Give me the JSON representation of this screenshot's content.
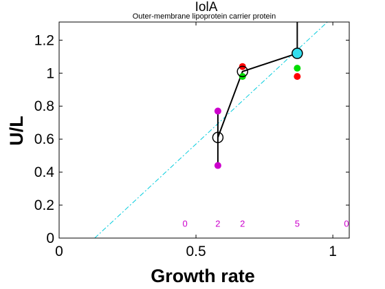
{
  "chart_data": {
    "type": "scatter",
    "title": "IolA",
    "subtitle": "Outer-membrane lipoprotein carrier protein",
    "xlabel": "Growth rate",
    "ylabel": "U/L",
    "xlim": [
      0,
      1.06
    ],
    "ylim": [
      0,
      1.31
    ],
    "x_ticks": [
      0,
      0.5,
      1
    ],
    "x_tick_labels": [
      "0",
      "0.5",
      "1"
    ],
    "y_ticks": [
      0,
      0.2,
      0.4,
      0.6,
      0.8,
      1,
      1.2
    ],
    "y_tick_labels": [
      "0",
      "0.2",
      "0.4",
      "0.6",
      "0.8",
      "1",
      "1.2"
    ],
    "grid": false,
    "legend": "none",
    "series": [
      {
        "marker": "filled-circle",
        "color": "#cc00cc",
        "points": [
          [
            0.58,
            0.77
          ],
          [
            0.58,
            0.44
          ]
        ]
      },
      {
        "marker": "filled-circle",
        "color": "#ff0000",
        "points": [
          [
            0.67,
            1.04
          ],
          [
            0.87,
            0.98
          ]
        ]
      },
      {
        "marker": "filled-circle",
        "color": "#00dd00",
        "points": [
          [
            0.67,
            0.98
          ],
          [
            0.87,
            1.03
          ]
        ]
      },
      {
        "marker": "filled-circle",
        "color": "#33ddee",
        "points": [
          [
            0.87,
            1.12
          ]
        ]
      },
      {
        "marker": "open-circle",
        "color": "#000000",
        "line": true,
        "points": [
          [
            0.58,
            0.61
          ],
          [
            0.67,
            1.01
          ],
          [
            0.87,
            1.12
          ]
        ]
      }
    ],
    "error_bars": [
      {
        "x": 0.58,
        "low": 0.44,
        "high": 0.77
      },
      {
        "x": 0.87,
        "low": 1.12,
        "high": 1.31
      }
    ],
    "reference_line": {
      "style": "dash-dot",
      "color": "#00ccdd",
      "points": [
        [
          0.13,
          0
        ],
        [
          0.98,
          1.31
        ]
      ]
    },
    "count_labels": [
      {
        "x": 0.46,
        "text": "0"
      },
      {
        "x": 0.58,
        "text": "2"
      },
      {
        "x": 0.67,
        "text": "2"
      },
      {
        "x": 0.87,
        "text": "5"
      },
      {
        "x": 1.05,
        "text": "0"
      }
    ],
    "count_label_y": 0.09
  }
}
